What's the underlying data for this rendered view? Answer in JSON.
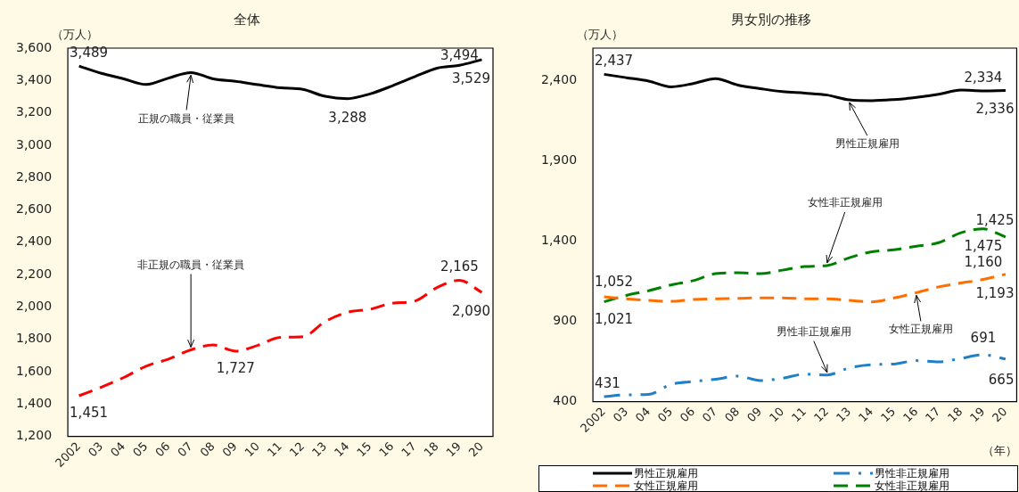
{
  "chart_data": [
    {
      "type": "line",
      "title": "全体",
      "ylabel": "（万人）",
      "categories": [
        "2002",
        "03",
        "04",
        "05",
        "06",
        "07",
        "08",
        "09",
        "10",
        "11",
        "12",
        "13",
        "14",
        "15",
        "16",
        "17",
        "18",
        "19",
        "20"
      ],
      "series": [
        {
          "name": "正規の職員・従業員",
          "color": "#000000",
          "line_style": "solid",
          "values": [
            3489,
            3444,
            3410,
            3375,
            3415,
            3449,
            3410,
            3395,
            3374,
            3355,
            3345,
            3302,
            3288,
            3317,
            3367,
            3423,
            3476,
            3494,
            3529
          ],
          "value_labels": [
            "3,489",
            null,
            null,
            null,
            null,
            null,
            null,
            null,
            null,
            null,
            null,
            null,
            "3,288",
            null,
            null,
            null,
            null,
            "3,494",
            "3,529"
          ]
        },
        {
          "name": "非正規の職員・従業員",
          "color": "#ff0000",
          "line_style": "dashed",
          "values": [
            1451,
            1504,
            1564,
            1634,
            1678,
            1735,
            1765,
            1727,
            1763,
            1812,
            1816,
            1910,
            1967,
            1986,
            2023,
            2036,
            2120,
            2165,
            2090
          ],
          "value_labels": [
            "1,451",
            null,
            null,
            null,
            null,
            null,
            null,
            "1,727",
            null,
            null,
            null,
            null,
            null,
            null,
            null,
            null,
            null,
            "2,165",
            "2,090"
          ]
        }
      ],
      "ylim": [
        1200,
        3600
      ],
      "yticks": [
        {
          "value": 1200,
          "label": "1,200"
        },
        {
          "value": 1400,
          "label": "1,400"
        },
        {
          "value": 1600,
          "label": "1,600"
        },
        {
          "value": 1800,
          "label": "1,800"
        },
        {
          "value": 2000,
          "label": "2,000"
        },
        {
          "value": 2200,
          "label": "2,200"
        },
        {
          "value": 2400,
          "label": "2,400"
        },
        {
          "value": 2600,
          "label": "2,600"
        },
        {
          "value": 2800,
          "label": "2,800"
        },
        {
          "value": 3000,
          "label": "3,000"
        },
        {
          "value": 3200,
          "label": "3,200"
        },
        {
          "value": 3400,
          "label": "3,400"
        },
        {
          "value": 3600,
          "label": "3,600"
        }
      ],
      "grid": false,
      "legend": false,
      "marker": "none"
    },
    {
      "type": "line",
      "title": "男女別の推移",
      "ylabel": "（万人）",
      "xlabel": "（年）",
      "categories": [
        "2002",
        "03",
        "04",
        "05",
        "06",
        "07",
        "08",
        "09",
        "10",
        "11",
        "12",
        "13",
        "14",
        "15",
        "16",
        "17",
        "18",
        "19",
        "20"
      ],
      "series": [
        {
          "name": "男性正規雇用",
          "color": "#000000",
          "line_style": "solid",
          "values": [
            2437,
            2416,
            2395,
            2359,
            2380,
            2410,
            2370,
            2348,
            2329,
            2320,
            2308,
            2278,
            2273,
            2280,
            2293,
            2313,
            2339,
            2334,
            2336
          ],
          "value_labels": [
            "2,437",
            null,
            null,
            null,
            null,
            null,
            null,
            null,
            null,
            null,
            null,
            null,
            null,
            null,
            null,
            null,
            null,
            "2,334",
            "2,336"
          ]
        },
        {
          "name": "女性正規雇用",
          "color": "#ff6e00",
          "line_style": "dashed",
          "values": [
            1052,
            1040,
            1030,
            1024,
            1035,
            1040,
            1042,
            1046,
            1046,
            1040,
            1040,
            1030,
            1021,
            1045,
            1078,
            1114,
            1138,
            1160,
            1193
          ],
          "value_labels": [
            "1,052",
            null,
            null,
            null,
            null,
            null,
            null,
            null,
            null,
            null,
            null,
            null,
            null,
            null,
            null,
            null,
            null,
            "1,160",
            "1,193"
          ]
        },
        {
          "name": "男性非正規雇用",
          "color": "#1f80c8",
          "line_style": "dashdot",
          "values": [
            431,
            442,
            445,
            507,
            525,
            539,
            559,
            531,
            545,
            571,
            566,
            610,
            630,
            634,
            655,
            647,
            669,
            691,
            665
          ],
          "value_labels": [
            "431",
            null,
            null,
            null,
            null,
            null,
            null,
            null,
            null,
            null,
            null,
            null,
            null,
            null,
            null,
            null,
            null,
            "691",
            "665"
          ]
        },
        {
          "name": "女性非正規雇用",
          "color": "#008000",
          "line_style": "dashed",
          "values": [
            1021,
            1061,
            1090,
            1126,
            1153,
            1196,
            1202,
            1196,
            1218,
            1241,
            1247,
            1296,
            1332,
            1345,
            1367,
            1389,
            1451,
            1475,
            1425
          ],
          "value_labels": [
            "1,021",
            null,
            null,
            null,
            null,
            null,
            null,
            null,
            null,
            null,
            null,
            null,
            null,
            null,
            null,
            null,
            null,
            "1,475",
            "1,425"
          ]
        }
      ],
      "ylim": [
        400,
        2600
      ],
      "yticks": [
        400,
        900,
        {
          "value": 1400,
          "label": "1,400"
        },
        {
          "value": 1900,
          "label": "1,900"
        },
        {
          "value": 2400,
          "label": "2,400"
        }
      ],
      "grid": false,
      "legend": "bottom",
      "marker": "none"
    }
  ]
}
